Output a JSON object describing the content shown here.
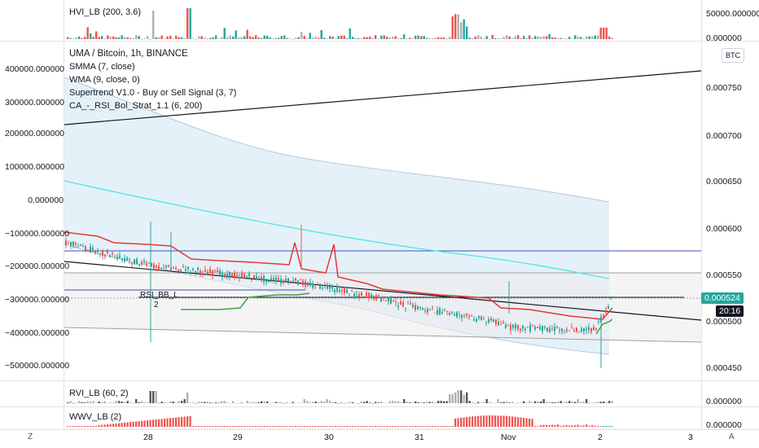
{
  "panes": {
    "hvi": {
      "label": "HVI_LB (200, 3.6)",
      "axis_top": "50000.000000",
      "axis_bottom": "0.000000"
    },
    "main": {
      "title": "UMA / Bitcoin, 1h, BINANCE",
      "indicators": [
        "SMMA (7, close)",
        "WMA (9, close, 0)",
        "Supertrend V1.0 - Buy or Sell Signal (3, 7)",
        "CA_-_RSI_Bol_Strat_1.1 (6, 200)"
      ],
      "currency_button": "BTC",
      "left_axis": [
        "400000.000000",
        "300000.000000",
        "200000.000000",
        "100000.000000",
        "0.000000",
        "−100000.000000",
        "−200000.000000",
        "−300000.000000",
        "−400000.000000",
        "−500000.000000"
      ],
      "right_axis": [
        "0.000750",
        "0.000700",
        "0.000650",
        "0.000600",
        "0.000550",
        "0.000500",
        "0.000450"
      ],
      "last_price": "0.000524",
      "countdown": "20:16",
      "annotation_signal": "RSI_BB_L",
      "annotation_number": "2"
    },
    "rvi": {
      "label": "RVI_LB (60, 2)",
      "axis": "0.000000"
    },
    "wwv": {
      "label": "WWV_LB (2)",
      "axis": "0.000000"
    }
  },
  "time_axis": [
    "28",
    "29",
    "30",
    "31",
    "Nov",
    "2",
    "3"
  ],
  "corner_left": "Z",
  "corner_right": "A",
  "colors": {
    "up": "#26a69a",
    "down": "#ef5350",
    "supertrend_down": "#e53935",
    "supertrend_up": "#43a047",
    "band_fill": "#dcecf7",
    "cyan_line": "#4de8e0",
    "blue_line": "#3f51b5",
    "price_tag": "#26a69a",
    "countdown_tag": "#131722"
  }
}
